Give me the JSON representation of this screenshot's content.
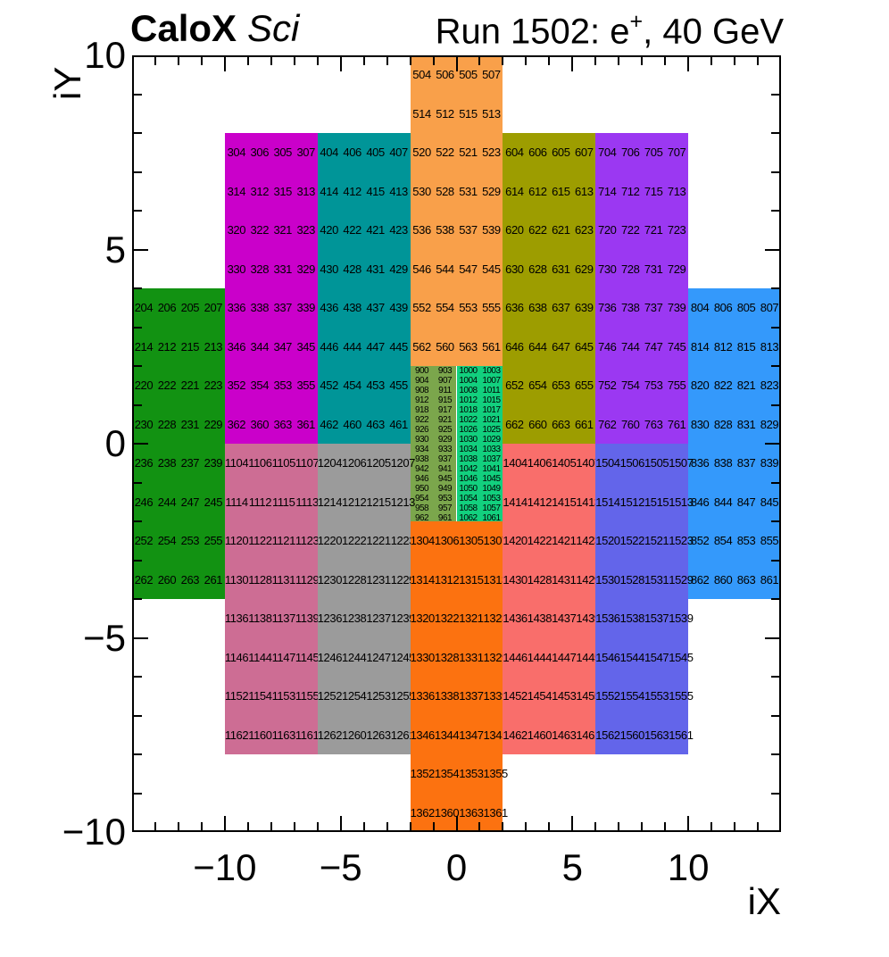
{
  "header": {
    "experiment": "CaloX",
    "subsystem": "Sci",
    "run_title_prefix": "Run 1502: e",
    "run_title_sup": "+",
    "run_title_suffix": ", 40 GeV"
  },
  "axes": {
    "x": {
      "title": "iX",
      "range": [
        -14,
        14
      ],
      "tick_labels": [
        {
          "value": -10,
          "label": "−10"
        },
        {
          "value": -5,
          "label": "−5"
        },
        {
          "value": 0,
          "label": "0"
        },
        {
          "value": 5,
          "label": "5"
        },
        {
          "value": 10,
          "label": "10"
        }
      ]
    },
    "y": {
      "title": "iY",
      "range": [
        -10,
        10
      ],
      "tick_labels": [
        {
          "value": 10,
          "label": "10"
        },
        {
          "value": 5,
          "label": "5"
        },
        {
          "value": 0,
          "label": "0"
        },
        {
          "value": -5,
          "label": "−5"
        },
        {
          "value": -10,
          "label": "−10"
        }
      ]
    }
  },
  "chart_data": {
    "type": "heatmap",
    "title": "CaloX Sci — Run 1502: e+, 40 GeV",
    "xlabel": "iX",
    "ylabel": "iY",
    "xlim": [
      -14,
      14
    ],
    "ylim": [
      -10,
      10
    ],
    "grid": false,
    "legend": "none",
    "description": "Calorimeter channel map: colored blocks of 1x1 cells labeled with channel numbers; center region is a fine grid (1x0.25 cells) of 900/1000-series channels.",
    "blocks": [
      {
        "name": "block-200-green",
        "color": "#129212",
        "x": [
          -14,
          -10
        ],
        "y": [
          -4,
          4
        ],
        "cols": 4,
        "fine": false,
        "rows": [
          [
            "204",
            "206",
            "205",
            "207"
          ],
          [
            "214",
            "212",
            "215",
            "213"
          ],
          [
            "220",
            "222",
            "221",
            "223"
          ],
          [
            "230",
            "228",
            "231",
            "229"
          ],
          [
            "236",
            "238",
            "237",
            "239"
          ],
          [
            "246",
            "244",
            "247",
            "245"
          ],
          [
            "252",
            "254",
            "253",
            "255"
          ],
          [
            "262",
            "260",
            "263",
            "261"
          ]
        ]
      },
      {
        "name": "block-300-magenta",
        "color": "#CA00CA",
        "x": [
          -10,
          -6
        ],
        "y": [
          0,
          8
        ],
        "cols": 4,
        "fine": false,
        "rows": [
          [
            "304",
            "306",
            "305",
            "307"
          ],
          [
            "314",
            "312",
            "315",
            "313"
          ],
          [
            "320",
            "322",
            "321",
            "323"
          ],
          [
            "330",
            "328",
            "331",
            "329"
          ],
          [
            "336",
            "338",
            "337",
            "339"
          ],
          [
            "346",
            "344",
            "347",
            "345"
          ],
          [
            "352",
            "354",
            "353",
            "355"
          ],
          [
            "362",
            "360",
            "363",
            "361"
          ]
        ]
      },
      {
        "name": "block-400-teal",
        "color": "#009598",
        "x": [
          -6,
          -2
        ],
        "y": [
          0,
          8
        ],
        "cols": 4,
        "fine": false,
        "rows": [
          [
            "404",
            "406",
            "405",
            "407"
          ],
          [
            "414",
            "412",
            "415",
            "413"
          ],
          [
            "420",
            "422",
            "421",
            "423"
          ],
          [
            "430",
            "428",
            "431",
            "429"
          ],
          [
            "436",
            "438",
            "437",
            "439"
          ],
          [
            "446",
            "444",
            "447",
            "445"
          ],
          [
            "452",
            "454",
            "453",
            "455"
          ],
          [
            "462",
            "460",
            "463",
            "461"
          ]
        ]
      },
      {
        "name": "block-500-orange",
        "color": "#F9A04A",
        "x": [
          -2,
          2
        ],
        "y": [
          2,
          10
        ],
        "cols": 4,
        "fine": false,
        "rows": [
          [
            "504",
            "506",
            "505",
            "507"
          ],
          [
            "514",
            "512",
            "515",
            "513"
          ],
          [
            "520",
            "522",
            "521",
            "523"
          ],
          [
            "530",
            "528",
            "531",
            "529"
          ],
          [
            "536",
            "538",
            "537",
            "539"
          ],
          [
            "546",
            "544",
            "547",
            "545"
          ],
          [
            "552",
            "554",
            "553",
            "555"
          ],
          [
            "562",
            "560",
            "563",
            "561"
          ]
        ]
      },
      {
        "name": "block-600-olive",
        "color": "#9D9D00",
        "x": [
          2,
          6
        ],
        "y": [
          0,
          8
        ],
        "cols": 4,
        "fine": false,
        "rows": [
          [
            "604",
            "606",
            "605",
            "607"
          ],
          [
            "614",
            "612",
            "615",
            "613"
          ],
          [
            "620",
            "622",
            "621",
            "623"
          ],
          [
            "630",
            "628",
            "631",
            "629"
          ],
          [
            "636",
            "638",
            "637",
            "639"
          ],
          [
            "646",
            "644",
            "647",
            "645"
          ],
          [
            "652",
            "654",
            "653",
            "655"
          ],
          [
            "662",
            "660",
            "663",
            "661"
          ]
        ]
      },
      {
        "name": "block-700-purple",
        "color": "#9B38F2",
        "x": [
          6,
          10
        ],
        "y": [
          0,
          8
        ],
        "cols": 4,
        "fine": false,
        "rows": [
          [
            "704",
            "706",
            "705",
            "707"
          ],
          [
            "714",
            "712",
            "715",
            "713"
          ],
          [
            "720",
            "722",
            "721",
            "723"
          ],
          [
            "730",
            "728",
            "731",
            "729"
          ],
          [
            "736",
            "738",
            "737",
            "739"
          ],
          [
            "746",
            "744",
            "747",
            "745"
          ],
          [
            "752",
            "754",
            "753",
            "755"
          ],
          [
            "762",
            "760",
            "763",
            "761"
          ]
        ]
      },
      {
        "name": "block-800-blue",
        "color": "#3499FB",
        "x": [
          10,
          14
        ],
        "y": [
          -4,
          4
        ],
        "cols": 4,
        "fine": false,
        "rows": [
          [
            "804",
            "806",
            "805",
            "807"
          ],
          [
            "814",
            "812",
            "815",
            "813"
          ],
          [
            "820",
            "822",
            "821",
            "823"
          ],
          [
            "830",
            "828",
            "831",
            "829"
          ],
          [
            "836",
            "838",
            "837",
            "839"
          ],
          [
            "846",
            "844",
            "847",
            "845"
          ],
          [
            "852",
            "854",
            "853",
            "855"
          ],
          [
            "862",
            "860",
            "863",
            "861"
          ]
        ]
      },
      {
        "name": "block-900-fine-left",
        "color": "#7BA64C",
        "x": [
          -2,
          0
        ],
        "y": [
          -2,
          2
        ],
        "cols": 2,
        "fine": true,
        "rows": [
          [
            "900",
            "903"
          ],
          [
            "904",
            "907"
          ],
          [
            "908",
            "911"
          ],
          [
            "912",
            "915"
          ],
          [
            "918",
            "917"
          ],
          [
            "922",
            "921"
          ],
          [
            "926",
            "925"
          ],
          [
            "930",
            "929"
          ],
          [
            "934",
            "933"
          ],
          [
            "938",
            "937"
          ],
          [
            "942",
            "941"
          ],
          [
            "946",
            "945"
          ],
          [
            "950",
            "949"
          ],
          [
            "954",
            "953"
          ],
          [
            "958",
            "957"
          ],
          [
            "962",
            "961"
          ]
        ]
      },
      {
        "name": "block-1000-fine-right",
        "color": "#12D07E",
        "x": [
          0,
          2
        ],
        "y": [
          -2,
          2
        ],
        "cols": 2,
        "fine": true,
        "rows": [
          [
            "1000",
            "1003"
          ],
          [
            "1004",
            "1007"
          ],
          [
            "1008",
            "1011"
          ],
          [
            "1012",
            "1015"
          ],
          [
            "1018",
            "1017"
          ],
          [
            "1022",
            "1021"
          ],
          [
            "1026",
            "1025"
          ],
          [
            "1030",
            "1029"
          ],
          [
            "1034",
            "1033"
          ],
          [
            "1038",
            "1037"
          ],
          [
            "1042",
            "1041"
          ],
          [
            "1046",
            "1045"
          ],
          [
            "1050",
            "1049"
          ],
          [
            "1054",
            "1053"
          ],
          [
            "1058",
            "1057"
          ],
          [
            "1062",
            "1061"
          ]
        ]
      },
      {
        "name": "block-1100-pink",
        "color": "#CD6D94",
        "x": [
          -10,
          -6
        ],
        "y": [
          -8,
          0
        ],
        "cols": 4,
        "fine": false,
        "rows": [
          [
            "1104",
            "1106",
            "1105",
            "1107"
          ],
          [
            "1114",
            "1112",
            "1115",
            "1113"
          ],
          [
            "1120",
            "1122",
            "1121",
            "1123"
          ],
          [
            "1130",
            "1128",
            "1131",
            "1129"
          ],
          [
            "1136",
            "1138",
            "1137",
            "1139"
          ],
          [
            "1146",
            "1144",
            "1147",
            "1145"
          ],
          [
            "1152",
            "1154",
            "1153",
            "1155"
          ],
          [
            "1162",
            "1160",
            "1163",
            "1161"
          ]
        ]
      },
      {
        "name": "block-1200-gray",
        "color": "#9B9B9B",
        "x": [
          -6,
          -2
        ],
        "y": [
          -8,
          0
        ],
        "cols": 4,
        "fine": false,
        "rows": [
          [
            "1204",
            "1206",
            "1205",
            "1207"
          ],
          [
            "1214",
            "1212",
            "1215",
            "1213"
          ],
          [
            "1220",
            "1222",
            "1221",
            "1223"
          ],
          [
            "1230",
            "1228",
            "1231",
            "1229"
          ],
          [
            "1236",
            "1238",
            "1237",
            "1239"
          ],
          [
            "1246",
            "1244",
            "1247",
            "1245"
          ],
          [
            "1252",
            "1254",
            "1253",
            "1255"
          ],
          [
            "1262",
            "1260",
            "1263",
            "1261"
          ]
        ]
      },
      {
        "name": "block-1300-dark-orange",
        "color": "#FC7210",
        "x": [
          -2,
          2
        ],
        "y": [
          -10,
          -2
        ],
        "cols": 4,
        "fine": false,
        "rows": [
          [
            "1304",
            "1306",
            "1305",
            "1307"
          ],
          [
            "1314",
            "1312",
            "1315",
            "1313"
          ],
          [
            "1320",
            "1322",
            "1321",
            "1323"
          ],
          [
            "1330",
            "1328",
            "1331",
            "1329"
          ],
          [
            "1336",
            "1338",
            "1337",
            "1339"
          ],
          [
            "1346",
            "1344",
            "1347",
            "1345"
          ],
          [
            "1352",
            "1354",
            "1353",
            "1355"
          ],
          [
            "1362",
            "1360",
            "1363",
            "1361"
          ]
        ]
      },
      {
        "name": "block-1400-salmon",
        "color": "#F96E6B",
        "x": [
          2,
          6
        ],
        "y": [
          -8,
          0
        ],
        "cols": 4,
        "fine": false,
        "rows": [
          [
            "1404",
            "1406",
            "1405",
            "1407"
          ],
          [
            "1414",
            "1412",
            "1415",
            "1413"
          ],
          [
            "1420",
            "1422",
            "1421",
            "1423"
          ],
          [
            "1430",
            "1428",
            "1431",
            "1429"
          ],
          [
            "1436",
            "1438",
            "1437",
            "1439"
          ],
          [
            "1446",
            "1444",
            "1447",
            "1445"
          ],
          [
            "1452",
            "1454",
            "1453",
            "1455"
          ],
          [
            "1462",
            "1460",
            "1463",
            "1461"
          ]
        ]
      },
      {
        "name": "block-1500-violet",
        "color": "#6365EA",
        "x": [
          6,
          10
        ],
        "y": [
          -8,
          0
        ],
        "cols": 4,
        "fine": false,
        "rows": [
          [
            "1504",
            "1506",
            "1505",
            "1507"
          ],
          [
            "1514",
            "1512",
            "1515",
            "1513"
          ],
          [
            "1520",
            "1522",
            "1521",
            "1523"
          ],
          [
            "1530",
            "1528",
            "1531",
            "1529"
          ],
          [
            "1536",
            "1538",
            "1537",
            "1539"
          ],
          [
            "1546",
            "1544",
            "1547",
            "1545"
          ],
          [
            "1552",
            "1554",
            "1553",
            "1555"
          ],
          [
            "1562",
            "1560",
            "1563",
            "1561"
          ]
        ]
      }
    ]
  }
}
